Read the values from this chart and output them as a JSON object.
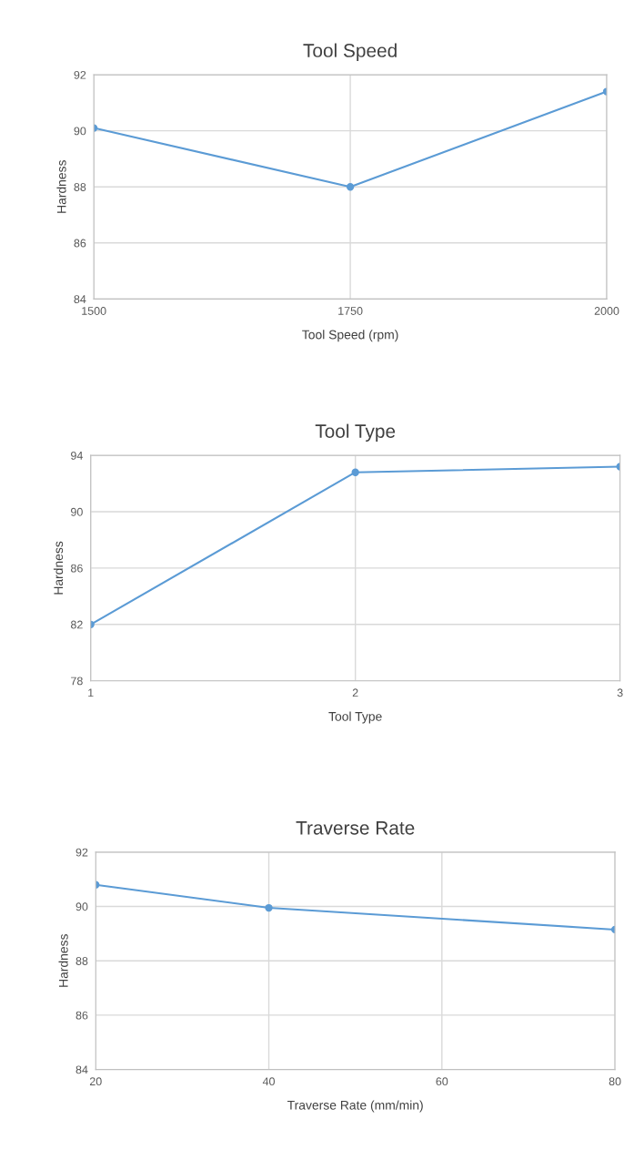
{
  "chart_data": [
    {
      "type": "line",
      "title": "Tool Speed",
      "xlabel": "Tool Speed (rpm)",
      "ylabel": "Hardness",
      "x": [
        1500,
        1750,
        2000
      ],
      "series": [
        {
          "color": "#5b9bd5",
          "values": [
            90.1,
            88.0,
            91.4
          ]
        }
      ],
      "xlim": [
        1500,
        2000
      ],
      "xticks": [
        1500,
        1750,
        2000
      ],
      "ylim": [
        84,
        92
      ],
      "yticks": [
        84,
        86,
        88,
        90,
        92
      ],
      "grid": true,
      "marker": "circle",
      "line_style": "solid"
    },
    {
      "type": "line",
      "title": "Tool Type",
      "xlabel": "Tool Type",
      "ylabel": "Hardness",
      "x": [
        1,
        2,
        3
      ],
      "series": [
        {
          "color": "#5b9bd5",
          "values": [
            82.0,
            92.8,
            93.2
          ]
        }
      ],
      "xlim": [
        1,
        3
      ],
      "xticks": [
        1,
        2,
        3
      ],
      "ylim": [
        78,
        94
      ],
      "yticks": [
        78,
        82,
        86,
        90,
        94
      ],
      "grid": true,
      "marker": "circle",
      "line_style": "solid"
    },
    {
      "type": "line",
      "title": "Traverse Rate",
      "xlabel": "Traverse Rate (mm/min)",
      "ylabel": "Hardness",
      "x": [
        20,
        40,
        80
      ],
      "series": [
        {
          "color": "#5b9bd5",
          "values": [
            90.8,
            89.95,
            89.15
          ]
        }
      ],
      "xlim": [
        20,
        80
      ],
      "xticks": [
        20,
        40,
        60,
        80
      ],
      "ylim": [
        84,
        92
      ],
      "yticks": [
        84,
        86,
        88,
        90,
        92
      ],
      "grid": true,
      "marker": "circle",
      "line_style": "solid"
    }
  ]
}
